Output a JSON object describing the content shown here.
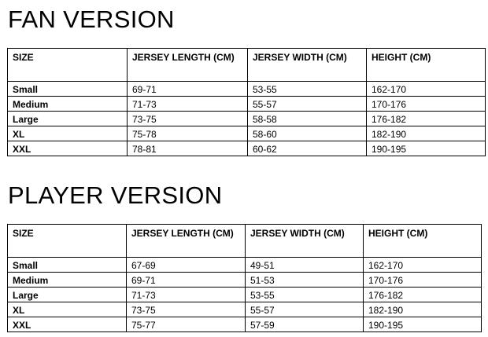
{
  "fan": {
    "title": "FAN VERSION",
    "headers": [
      "SIZE",
      "JERSEY LENGTH (CM)",
      "JERSEY WIDTH (CM)",
      "HEIGHT (CM)"
    ],
    "rows": [
      [
        "Small",
        "69-71",
        "53-55",
        "162-170"
      ],
      [
        "Medium",
        "71-73",
        "55-57",
        "170-176"
      ],
      [
        "Large",
        "73-75",
        "58-58",
        "176-182"
      ],
      [
        "XL",
        "75-78",
        "58-60",
        "182-190"
      ],
      [
        "XXL",
        "78-81",
        "60-62",
        "190-195"
      ]
    ]
  },
  "player": {
    "title": "PLAYER VERSION",
    "headers": [
      "SIZE",
      "JERSEY LENGTH (CM)",
      "JERSEY WIDTH (CM)",
      "HEIGHT (CM)"
    ],
    "rows": [
      [
        "Small",
        "67-69",
        "49-51",
        "162-170"
      ],
      [
        "Medium",
        "69-71",
        "51-53",
        "170-176"
      ],
      [
        "Large",
        "71-73",
        "53-55",
        "176-182"
      ],
      [
        "XL",
        "73-75",
        "55-57",
        "182-190"
      ],
      [
        "XXL",
        "75-77",
        "57-59",
        "190-195"
      ]
    ]
  }
}
